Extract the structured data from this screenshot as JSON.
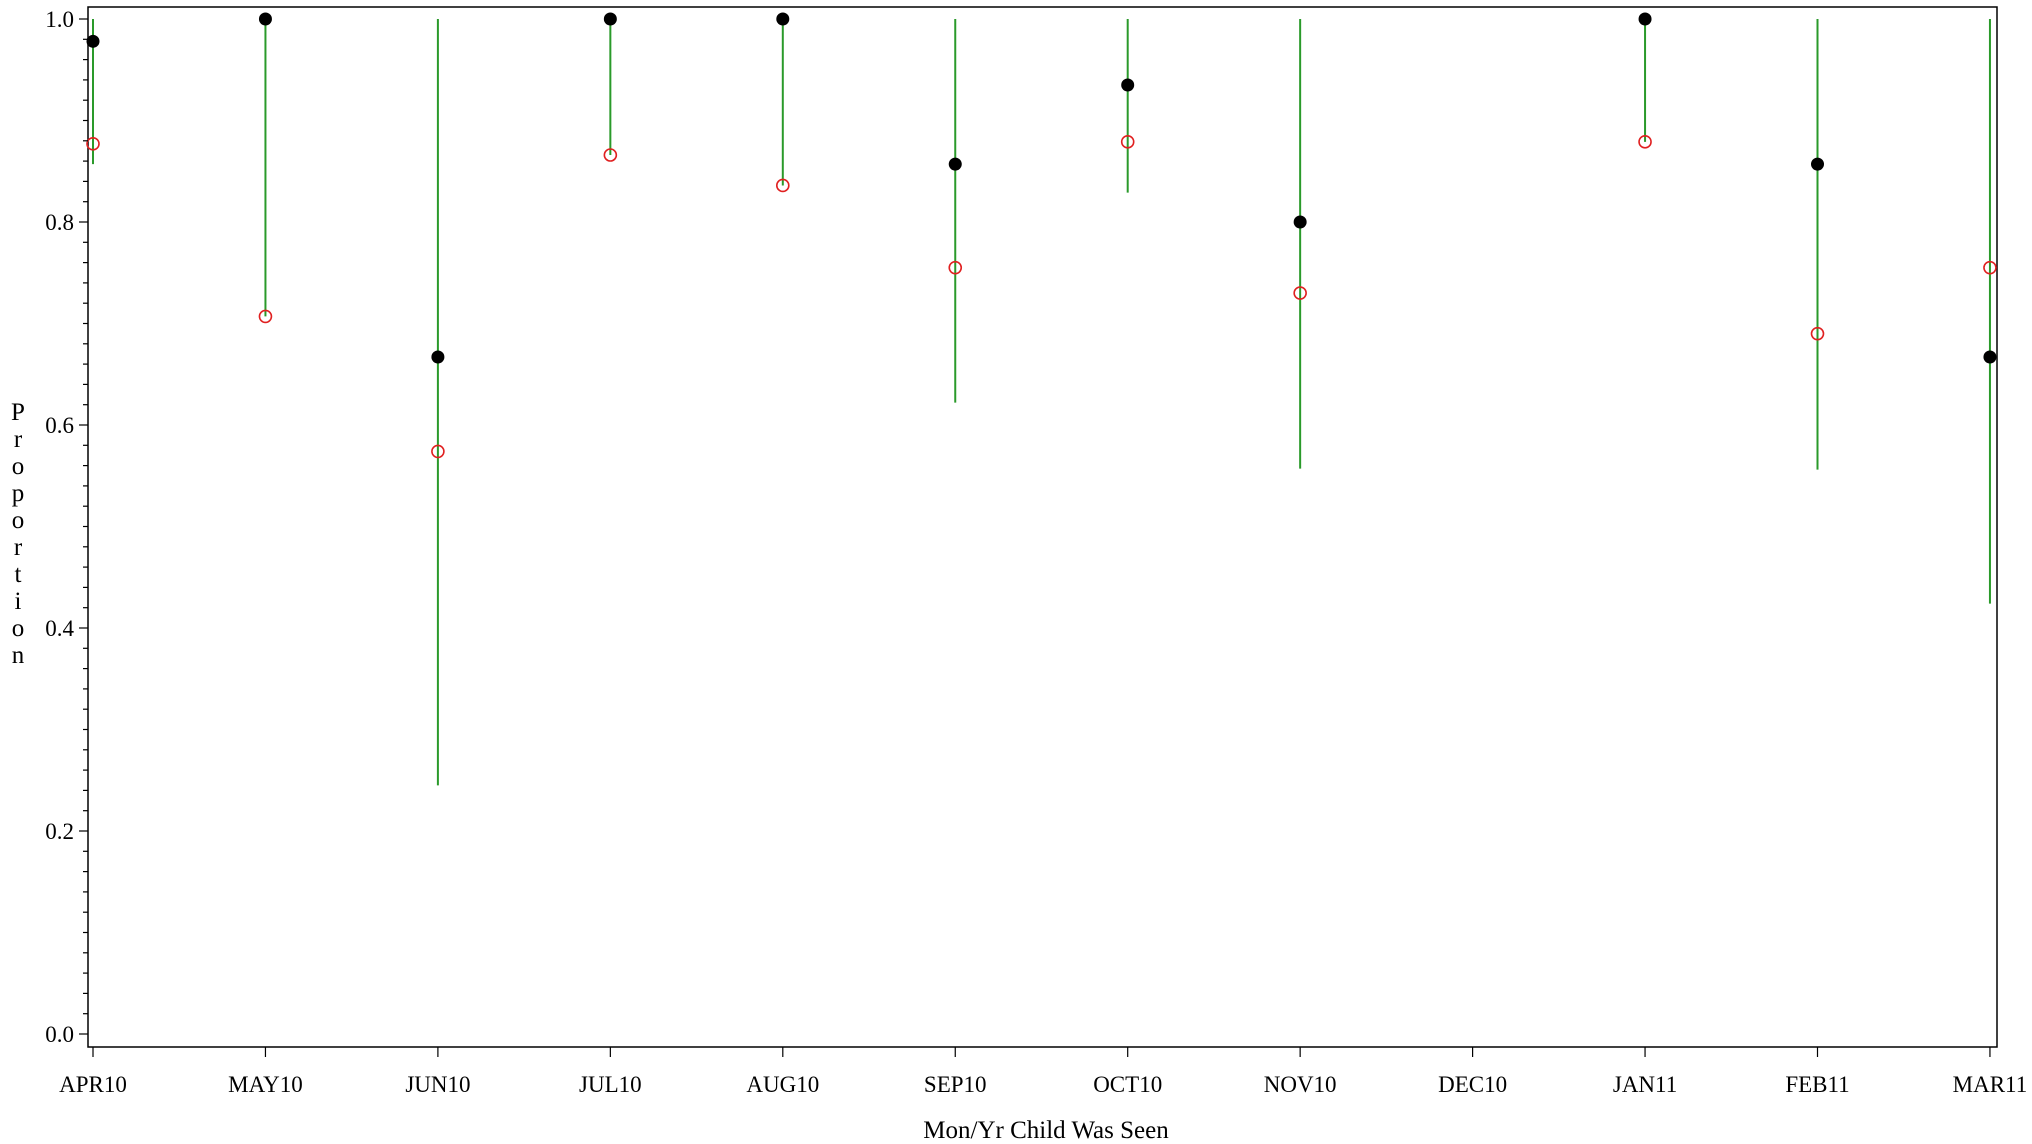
{
  "chart_data": {
    "type": "scatter",
    "xlabel": "Mon/Yr Child Was Seen",
    "ylabel": "Proportion",
    "categories": [
      "APR10",
      "MAY10",
      "JUN10",
      "JUL10",
      "AUG10",
      "SEP10",
      "OCT10",
      "NOV10",
      "DEC10",
      "JAN11",
      "FEB11",
      "MAR11"
    ],
    "ylim": [
      0.0,
      1.0
    ],
    "yticks": [
      "0.0",
      "0.2",
      "0.4",
      "0.6",
      "0.8",
      "1.0"
    ],
    "grid": false,
    "series": [
      {
        "marker": "filled-circle",
        "color": "#000000",
        "values": [
          0.978,
          1.0,
          0.667,
          1.0,
          1.0,
          0.857,
          0.935,
          0.8,
          null,
          1.0,
          0.857,
          0.667
        ]
      },
      {
        "marker": "open-circle",
        "color": "#e02020",
        "values": [
          0.877,
          0.707,
          0.574,
          0.866,
          0.836,
          0.755,
          0.879,
          0.73,
          null,
          0.879,
          0.69,
          0.755
        ]
      }
    ],
    "intervals": {
      "color": "#2a9a2a",
      "lower": [
        0.857,
        0.707,
        0.245,
        0.866,
        0.836,
        0.622,
        0.829,
        0.557,
        null,
        0.879,
        0.556,
        0.424
      ],
      "upper": [
        1.0,
        1.0,
        1.0,
        1.0,
        1.0,
        1.0,
        1.0,
        1.0,
        null,
        1.0,
        1.0,
        1.0
      ]
    }
  }
}
